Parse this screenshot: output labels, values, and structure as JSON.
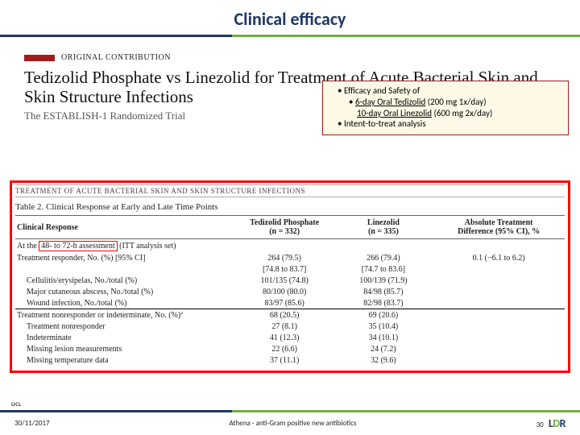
{
  "title": "Clinical efficacy",
  "original": {
    "marker_color": "#a01c1c",
    "label": "ORIGINAL CONTRIBUTION"
  },
  "headline": "Tedizolid Phosphate vs Linezolid for Treatment of Acute Bacterial Skin and Skin Structure Infections",
  "subhead": "The ESTABLISH-1 Randomized Trial",
  "box": {
    "line1": "Efficacy and Safety of",
    "line2a": "6-day Oral Tedizolid",
    "line2b": "(200 mg 1x/day)",
    "line3a": "10-day Oral Linezolid",
    "line3b": "(600 mg 2x/day)",
    "line4": "Intent-to-treat analysis"
  },
  "table": {
    "strip_title": "TREATMENT OF ACUTE BACTERIAL SKIN AND SKIN STRUCTURE INFECTIONS",
    "caption": "Table 2. Clinical Response at Early and Late Time Points",
    "headers": {
      "c1": "Clinical Response",
      "c2": "Tedizolid Phosphate",
      "c2n": "(n = 332)",
      "c3": "Linezolid",
      "c3n": "(n = 335)",
      "c4": "Absolute Treatment",
      "c4b": "Difference (95% CI), %"
    },
    "section1_pre": "At the ",
    "section1_hl": "48- to 72-h assessment",
    "section1_post": " (ITT analysis set)",
    "rows": [
      {
        "label": "Treatment responder, No. (%) [95% CI]",
        "t": "264 (79.5)",
        "l": "266 (79.4)",
        "d": "0.1 (−6.1 to 6.2)"
      },
      {
        "label": "",
        "t": "[74.8 to 83.7]",
        "l": "[74.7 to 83.6]",
        "d": ""
      },
      {
        "label": "Cellulitis/erysipelas, No./total (%)",
        "indent": true,
        "t": "101/135 (74.8)",
        "l": "100/139 (71.9)",
        "d": ""
      },
      {
        "label": "Major cutaneous abscess, No./total (%)",
        "indent": true,
        "t": "80/100 (80.0)",
        "l": "84/98 (85.7)",
        "d": ""
      },
      {
        "label": "Wound infection, No./total (%)",
        "indent": true,
        "t": "83/97 (85.6)",
        "l": "82/98 (83.7)",
        "d": ""
      }
    ],
    "section2": "Treatment nonresponder or indeterminate, No. (%)ª",
    "rows2": [
      {
        "label": "Treatment nonresponder or indeterminate, No. (%)ª",
        "t": "68 (20.5)",
        "l": "69 (20.6)",
        "d": "",
        "sep": true
      },
      {
        "label": "Treatment nonresponder",
        "indent": true,
        "t": "27 (8.1)",
        "l": "35 (10.4)",
        "d": ""
      },
      {
        "label": "Indeterminate",
        "indent": true,
        "t": "41 (12.3)",
        "l": "34 (10.1)",
        "d": ""
      },
      {
        "label": "Missing lesion measurements",
        "indent": true,
        "t": "22 (6.6)",
        "l": "24 (7.2)",
        "d": ""
      },
      {
        "label": "Missing temperature data",
        "indent": true,
        "t": "37 (11.1)",
        "l": "32 (9.6)",
        "d": ""
      }
    ]
  },
  "footer": {
    "date": "30/11/2017",
    "center": "Athena - anti-Gram positive new antibiotics",
    "page": "30",
    "ucl": "UCL",
    "ldr": "LDR"
  }
}
